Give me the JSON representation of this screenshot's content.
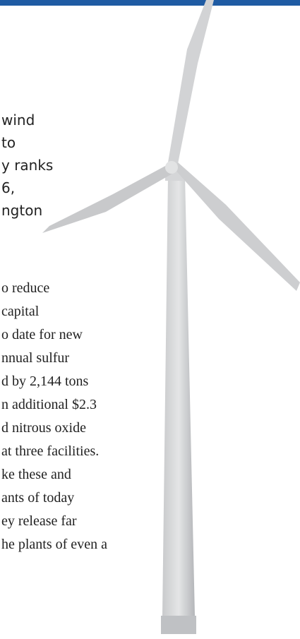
{
  "intro_lines": [
    "wind",
    "to",
    "y ranks",
    "6,",
    "ngton"
  ],
  "body_lines": [
    "o reduce",
    "capital",
    "o date for new",
    "nnual sulfur",
    "d by 2,144 tons",
    "n additional $2.3",
    "d nitrous oxide",
    "at three facilities.",
    "ke these and",
    "ants of today",
    "ey release far",
    "he plants of even a"
  ]
}
